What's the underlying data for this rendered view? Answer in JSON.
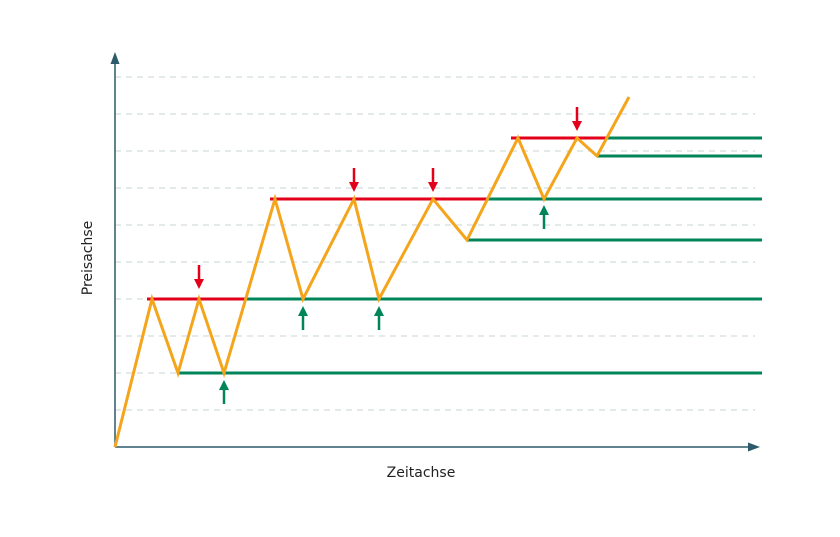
{
  "y_axis_label": "Preisachse",
  "x_axis_label": "Zeitachse"
}
